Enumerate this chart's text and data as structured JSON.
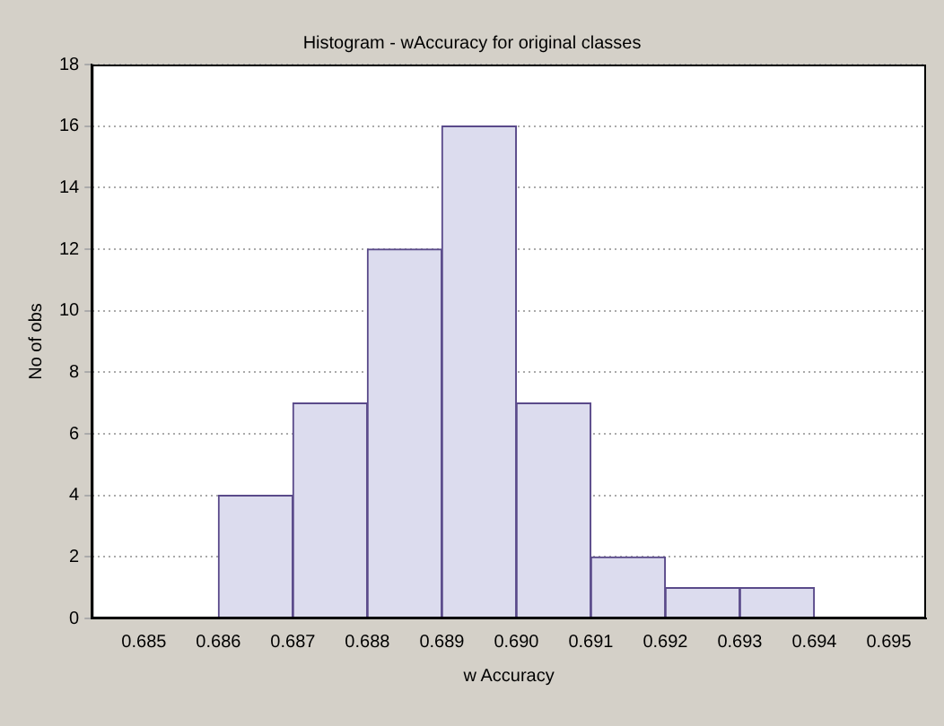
{
  "chart_data": {
    "type": "histogram",
    "title": "Histogram - wAccuracy for original classes",
    "xlabel": "w Accuracy",
    "ylabel": "No of obs",
    "bins": [
      0.686,
      0.687,
      0.688,
      0.689,
      0.69,
      0.691,
      0.692,
      0.693,
      0.694
    ],
    "values": [
      4,
      7,
      12,
      16,
      7,
      2,
      1,
      1
    ],
    "color": "#dcdcee",
    "xlim": [
      0.6843,
      0.6955
    ],
    "xticks": [
      {
        "value": 0.685,
        "label": "0.685"
      },
      {
        "value": 0.686,
        "label": "0.686"
      },
      {
        "value": 0.687,
        "label": "0.687"
      },
      {
        "value": 0.688,
        "label": "0.688"
      },
      {
        "value": 0.689,
        "label": "0.689"
      },
      {
        "value": 0.69,
        "label": "0.690"
      },
      {
        "value": 0.691,
        "label": "0.691"
      },
      {
        "value": 0.692,
        "label": "0.692"
      },
      {
        "value": 0.693,
        "label": "0.693"
      },
      {
        "value": 0.694,
        "label": "0.694"
      },
      {
        "value": 0.695,
        "label": "0.695"
      }
    ],
    "ylim": [
      0,
      18
    ],
    "yticks": [
      0,
      2,
      4,
      6,
      8,
      10,
      12,
      14,
      16,
      18
    ],
    "grid": "y",
    "legend": false
  }
}
